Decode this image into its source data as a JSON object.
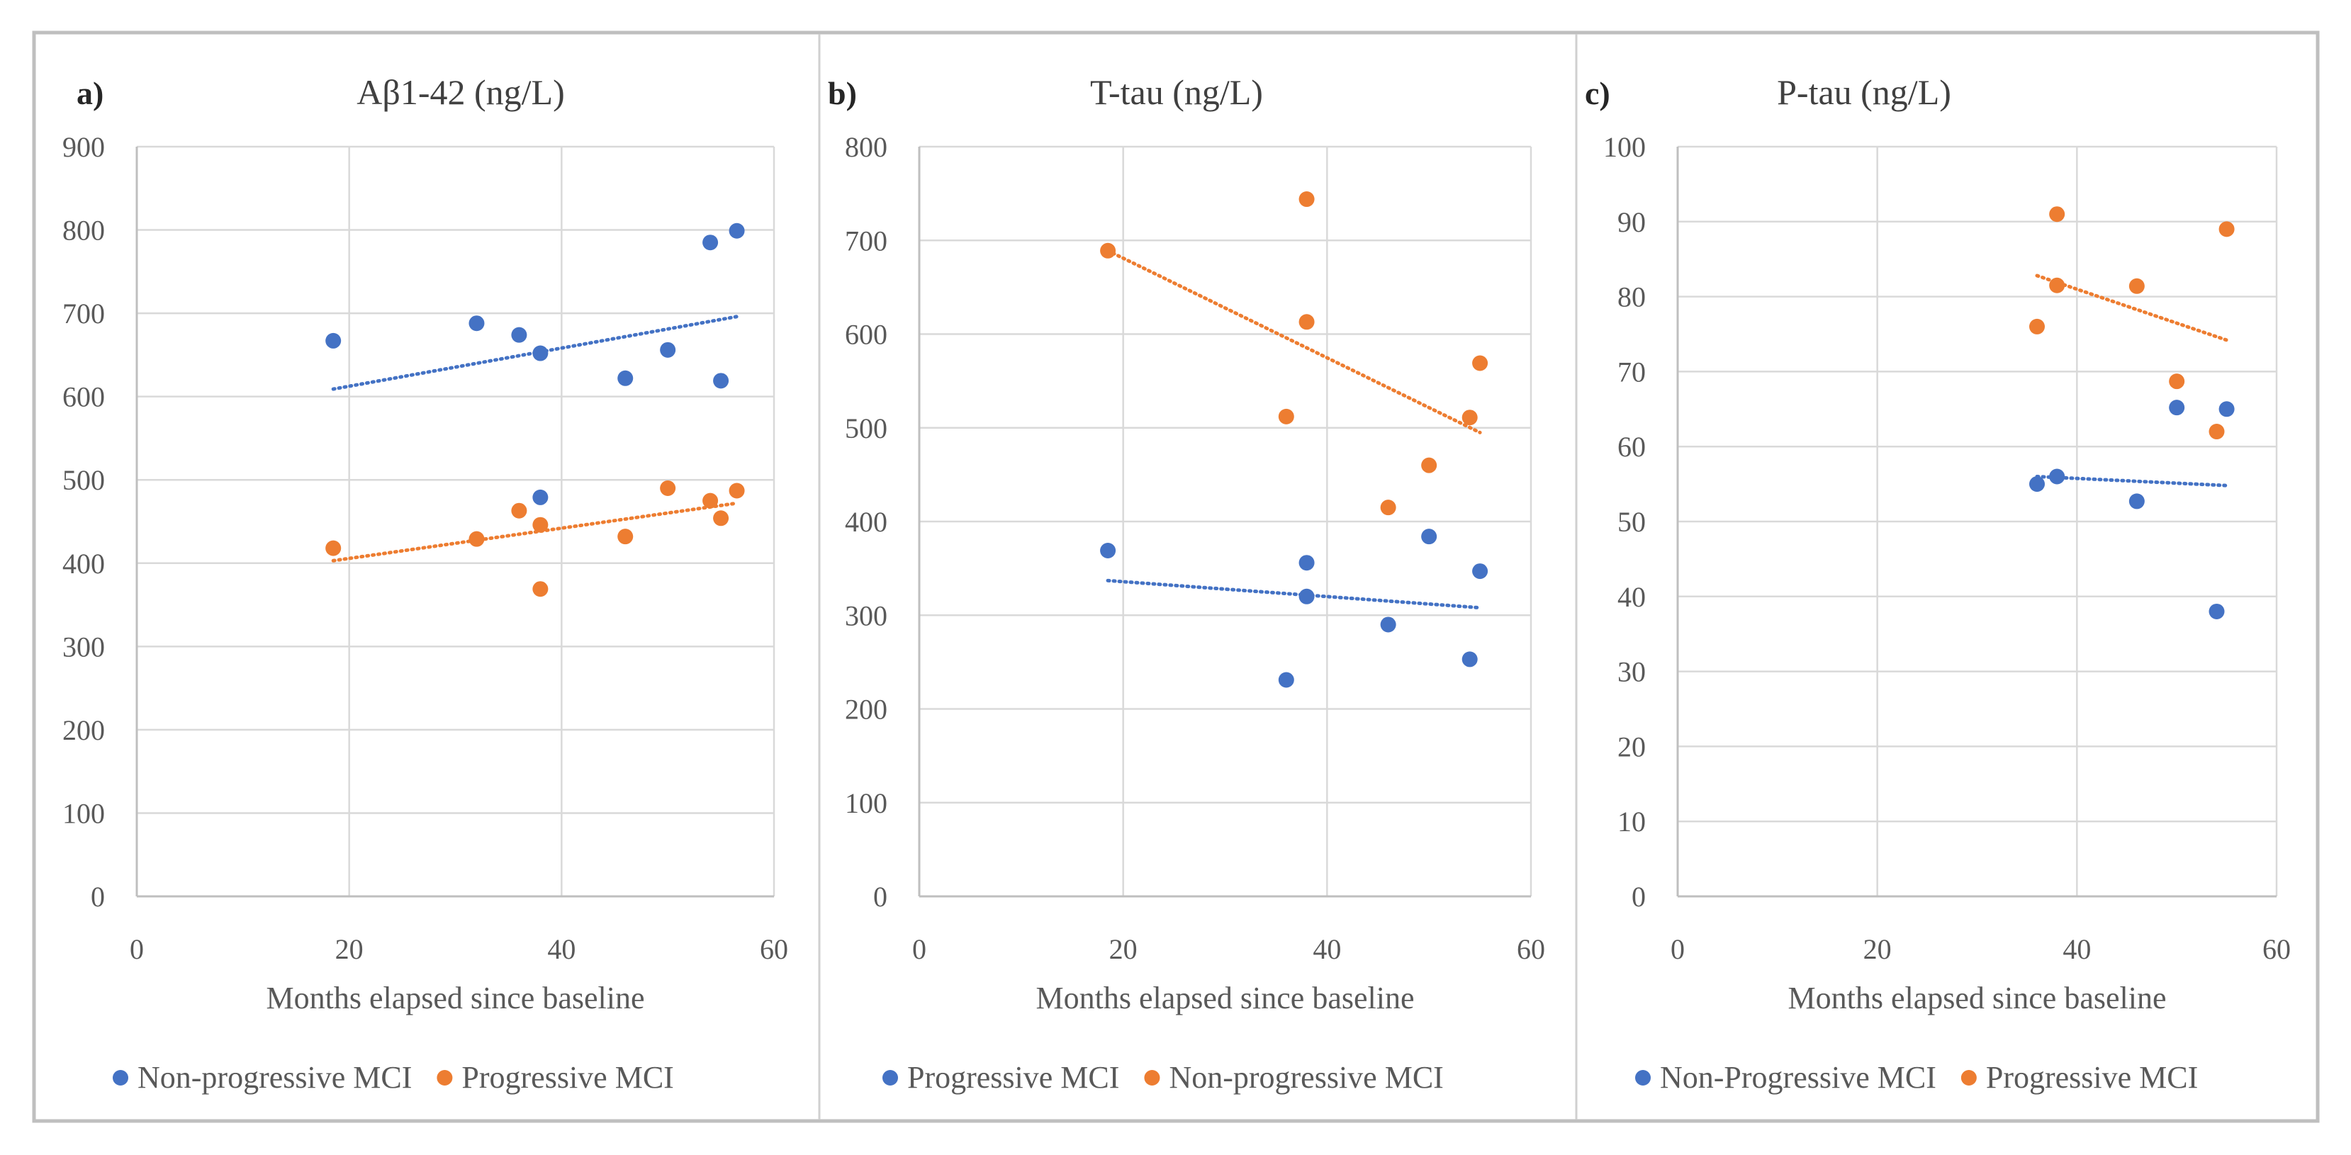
{
  "chart_data": [
    {
      "type": "scatter",
      "panel_label": "a)",
      "title": "Aβ1-42 (ng/L)",
      "xlabel": "Months elapsed since baseline",
      "ylabel": "",
      "xlim": [
        0,
        60
      ],
      "ylim": [
        0,
        900
      ],
      "xticks": [
        "0",
        "20",
        "40",
        "60"
      ],
      "yticks": [
        "0",
        "100",
        "200",
        "300",
        "400",
        "500",
        "600",
        "700",
        "800",
        "900"
      ],
      "grid": true,
      "legend_position": "bottom",
      "series": [
        {
          "name": "Non-progressive MCI",
          "color": "#4472c4",
          "points": [
            [
              18.5,
              667
            ],
            [
              32,
              688
            ],
            [
              36,
              674
            ],
            [
              38,
              652
            ],
            [
              38,
              479
            ],
            [
              46,
              622
            ],
            [
              50,
              656
            ],
            [
              54,
              785
            ],
            [
              55,
              619
            ],
            [
              56.5,
              799
            ]
          ],
          "trend": [
            [
              18.5,
              609
            ],
            [
              56.5,
              696
            ]
          ]
        },
        {
          "name": "Progressive MCI",
          "color": "#ed7d31",
          "points": [
            [
              18.5,
              418
            ],
            [
              32,
              429
            ],
            [
              36,
              463
            ],
            [
              38,
              446
            ],
            [
              38,
              369
            ],
            [
              46,
              432
            ],
            [
              50,
              490
            ],
            [
              54,
              475
            ],
            [
              55,
              454
            ],
            [
              56.5,
              487
            ]
          ],
          "trend": [
            [
              18.5,
              403
            ],
            [
              56.5,
              472
            ]
          ]
        }
      ]
    },
    {
      "type": "scatter",
      "panel_label": "b)",
      "title": "T-tau (ng/L)",
      "xlabel": "Months elapsed since baseline",
      "ylabel": "",
      "xlim": [
        0,
        60
      ],
      "ylim": [
        0,
        800
      ],
      "xticks": [
        "0",
        "20",
        "40",
        "60"
      ],
      "yticks": [
        "0",
        "100",
        "200",
        "300",
        "400",
        "500",
        "600",
        "700",
        "800"
      ],
      "grid": true,
      "legend_position": "bottom",
      "series": [
        {
          "name": "Progressive MCI",
          "color": "#4472c4",
          "points": [
            [
              18.5,
              369
            ],
            [
              36,
              231
            ],
            [
              38,
              356
            ],
            [
              38,
              320
            ],
            [
              46,
              290
            ],
            [
              50,
              384
            ],
            [
              54,
              253
            ],
            [
              55,
              347
            ]
          ],
          "trend": [
            [
              18.5,
              337
            ],
            [
              55,
              308
            ]
          ]
        },
        {
          "name": "Non-progressive MCI",
          "color": "#ed7d31",
          "points": [
            [
              18.5,
              689
            ],
            [
              36,
              512
            ],
            [
              38,
              744
            ],
            [
              38,
              613
            ],
            [
              46,
              415
            ],
            [
              50,
              460
            ],
            [
              54,
              511
            ],
            [
              55,
              569
            ]
          ],
          "trend": [
            [
              18.5,
              689
            ],
            [
              55,
              495
            ]
          ]
        }
      ]
    },
    {
      "type": "scatter",
      "panel_label": "c)",
      "title": "P-tau (ng/L)",
      "xlabel": "Months elapsed since baseline",
      "ylabel": "",
      "xlim": [
        0,
        60
      ],
      "ylim": [
        0,
        100
      ],
      "xticks": [
        "0",
        "20",
        "40",
        "60"
      ],
      "yticks": [
        "0",
        "10",
        "20",
        "30",
        "40",
        "50",
        "60",
        "70",
        "80",
        "90",
        "100"
      ],
      "grid": true,
      "legend_position": "bottom",
      "series": [
        {
          "name": "Non-Progressive MCI",
          "color": "#4472c4",
          "points": [
            [
              36,
              55
            ],
            [
              38,
              56
            ],
            [
              46,
              52.7
            ],
            [
              50,
              65.2
            ],
            [
              54,
              38
            ],
            [
              55,
              65
            ]
          ],
          "trend": [
            [
              36,
              56
            ],
            [
              55,
              54.8
            ]
          ]
        },
        {
          "name": "Progressive MCI",
          "color": "#ed7d31",
          "points": [
            [
              36,
              76
            ],
            [
              38,
              91
            ],
            [
              38,
              81.5
            ],
            [
              46,
              81.4
            ],
            [
              50,
              68.7
            ],
            [
              54,
              62
            ],
            [
              55,
              89
            ]
          ],
          "trend": [
            [
              36,
              82.8
            ],
            [
              55,
              74.2
            ]
          ]
        }
      ]
    }
  ]
}
